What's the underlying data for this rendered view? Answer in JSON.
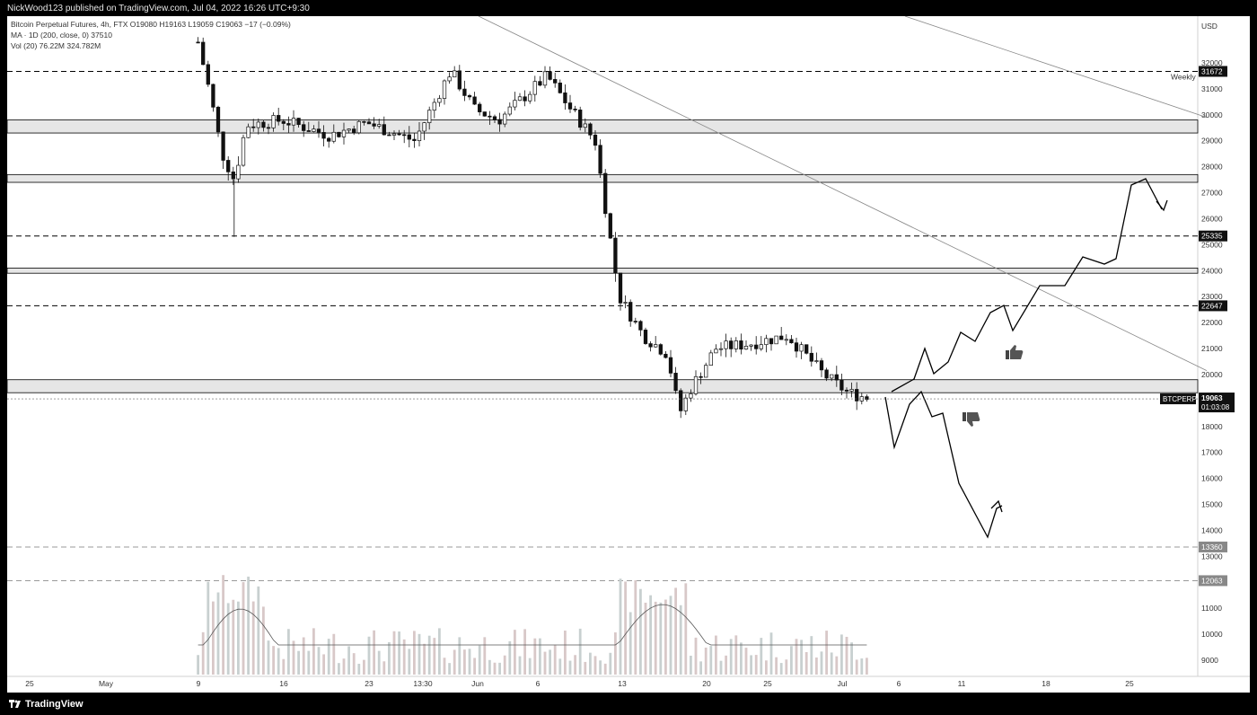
{
  "header": {
    "published_text": "NickWood123 published on TradingView.com, Jul 04, 2022 16:26 UTC+9:30"
  },
  "brand": {
    "name": "TradingView"
  },
  "legend": {
    "line1": "Bitcoin Perpetual Futures, 4h, FTX  O19080  H19163  L19059  C19063  −17 (−0.09%)",
    "line2": "MA · 1D (200, close, 0)  37510",
    "line3": "Vol (20)  76.22M  324.782M"
  },
  "colors": {
    "candles": "#111111",
    "levels": "#000000",
    "band_fill": "#e6e6e6",
    "label_bg": "#111111",
    "label_text": "#ffffff"
  },
  "chart_data": {
    "type": "candlestick",
    "symbol": "BTCPERP",
    "timeframe": "4h",
    "y_axis_label": "USD",
    "ylim": [
      8000,
      33000
    ],
    "y_ticks": [
      9000,
      10000,
      11000,
      12000,
      13000,
      14000,
      15000,
      16000,
      17000,
      18000,
      19000,
      20000,
      21000,
      22000,
      23000,
      24000,
      25000,
      26000,
      27000,
      28000,
      29000,
      30000,
      31000,
      32000
    ],
    "x_ticks": [
      "25",
      "May",
      "9",
      "16",
      "23",
      "13:30",
      "Jun",
      "6",
      "13",
      "20",
      "25",
      "Jul",
      "6",
      "11",
      "18",
      "25"
    ],
    "price_anchors": [
      [
        "May 9",
        32800
      ],
      [
        "May 10",
        30800
      ],
      [
        "May 11",
        28500
      ],
      [
        "May 12",
        27500
      ],
      [
        "May 13",
        29600
      ],
      [
        "May 16",
        29800
      ],
      [
        "May 20",
        29200
      ],
      [
        "May 23",
        29700
      ],
      [
        "May 27",
        29000
      ],
      [
        "May 30",
        31700
      ],
      [
        "Jun 1",
        30200
      ],
      [
        "Jun 3",
        29800
      ],
      [
        "Jun 7",
        31500
      ],
      [
        "Jun 9",
        30200
      ],
      [
        "Jun 11",
        29000
      ],
      [
        "Jun 13",
        23000
      ],
      [
        "Jun 15",
        21500
      ],
      [
        "Jun 17",
        20800
      ],
      [
        "Jun 18",
        18500
      ],
      [
        "Jun 19",
        19500
      ],
      [
        "Jun 21",
        21000
      ],
      [
        "Jun 24",
        21200
      ],
      [
        "Jun 27",
        21500
      ],
      [
        "Jun 30",
        20000
      ],
      [
        "Jul 2",
        19300
      ],
      [
        "Jul 4",
        19063
      ]
    ],
    "last_price": "19063",
    "countdown": "01:03:08",
    "levels": [
      {
        "price": 31672,
        "label": "31672",
        "style": "dashed",
        "note": "Weekly"
      },
      {
        "price": 25335,
        "label": "25335",
        "style": "dashed"
      },
      {
        "price": 22647,
        "label": "22647",
        "style": "dashed"
      },
      {
        "price": 13360,
        "label": "13360",
        "style": "dashed-light"
      },
      {
        "price": 12063,
        "label": "12063",
        "style": "dashed-light"
      }
    ],
    "zones": [
      [
        29300,
        29800
      ],
      [
        27400,
        27700
      ],
      [
        23900,
        24100
      ],
      [
        19300,
        19800
      ]
    ],
    "scenario_bull": "thumbs-up-icon",
    "scenario_bear": "thumbs-down-icon"
  }
}
